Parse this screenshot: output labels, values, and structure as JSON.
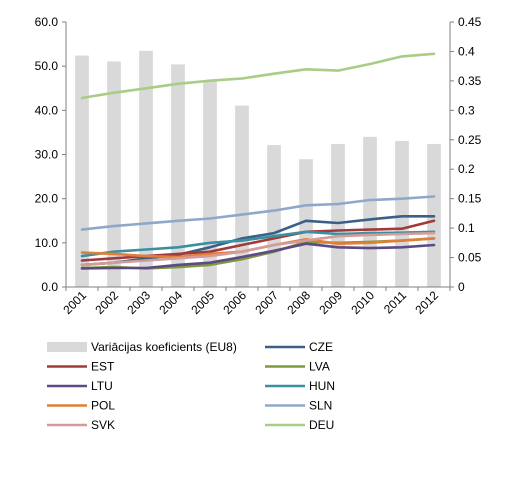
{
  "chart_data": {
    "type": "bar",
    "categories": [
      "2001",
      "2002",
      "2003",
      "2004",
      "2005",
      "2006",
      "2007",
      "2008",
      "2009",
      "2010",
      "2011",
      "2012"
    ],
    "y_left_ticks": [
      "0.0",
      "10.0",
      "20.0",
      "30.0",
      "40.0",
      "50.0",
      "60.0"
    ],
    "y_right_ticks": [
      "0",
      "0.05",
      "0.1",
      "0.15",
      "0.2",
      "0.25",
      "0.3",
      "0.35",
      "0.4",
      "0.45"
    ],
    "ylim_left": [
      0,
      60
    ],
    "ylim_right": [
      0,
      0.45
    ],
    "grid": false,
    "legend_position": "bottom",
    "bar_series": {
      "name": "Variācijas koeficients (EU8)",
      "axis": "right",
      "color": "#d9d9d9",
      "values": [
        0.393,
        0.383,
        0.401,
        0.378,
        0.351,
        0.308,
        0.241,
        0.217,
        0.243,
        0.255,
        0.248,
        0.243
      ]
    },
    "line_series": [
      {
        "name": "CZE",
        "color": "#3a6088",
        "values": [
          5.0,
          5.5,
          6.5,
          7.3,
          9.0,
          11.0,
          12.2,
          15.0,
          14.5,
          15.3,
          16.0,
          16.0
        ]
      },
      {
        "name": "EST",
        "color": "#a33a3a",
        "values": [
          6.0,
          6.5,
          7.0,
          7.5,
          8.0,
          9.5,
          11.0,
          12.5,
          12.8,
          13.0,
          13.2,
          15.0
        ]
      },
      {
        "name": "LVA",
        "color": "#7f9a3e",
        "values": [
          4.3,
          4.5,
          4.2,
          4.5,
          5.0,
          6.3,
          8.0,
          10.2,
          10.0,
          10.2,
          10.5,
          11.0
        ]
      },
      {
        "name": "LTU",
        "color": "#5d4a84",
        "values": [
          4.2,
          4.3,
          4.3,
          5.0,
          5.5,
          6.8,
          8.2,
          9.8,
          9.0,
          8.8,
          9.0,
          9.5
        ]
      },
      {
        "name": "HUN",
        "color": "#3c8fa1",
        "values": [
          7.0,
          8.0,
          8.5,
          9.0,
          10.0,
          10.5,
          11.5,
          12.5,
          12.0,
          12.2,
          12.3,
          12.5
        ]
      },
      {
        "name": "POL",
        "color": "#e07f35",
        "values": [
          7.8,
          7.5,
          7.0,
          6.8,
          7.5,
          8.0,
          9.5,
          10.8,
          9.8,
          10.0,
          10.5,
          11.0
        ]
      },
      {
        "name": "SLN",
        "color": "#8ea8c9",
        "values": [
          13.0,
          13.8,
          14.4,
          15.0,
          15.5,
          16.4,
          17.3,
          18.5,
          18.8,
          19.7,
          20.0,
          20.5
        ]
      },
      {
        "name": "SVK",
        "color": "#d59a9a",
        "values": [
          5.0,
          5.5,
          6.0,
          6.5,
          7.0,
          8.0,
          9.5,
          10.5,
          11.5,
          11.8,
          12.0,
          12.2
        ]
      },
      {
        "name": "DEU",
        "color": "#a9cd86",
        "values": [
          42.8,
          44.0,
          45.0,
          46.0,
          46.7,
          47.2,
          48.3,
          49.3,
          49.0,
          50.5,
          52.2,
          52.8
        ]
      }
    ]
  }
}
